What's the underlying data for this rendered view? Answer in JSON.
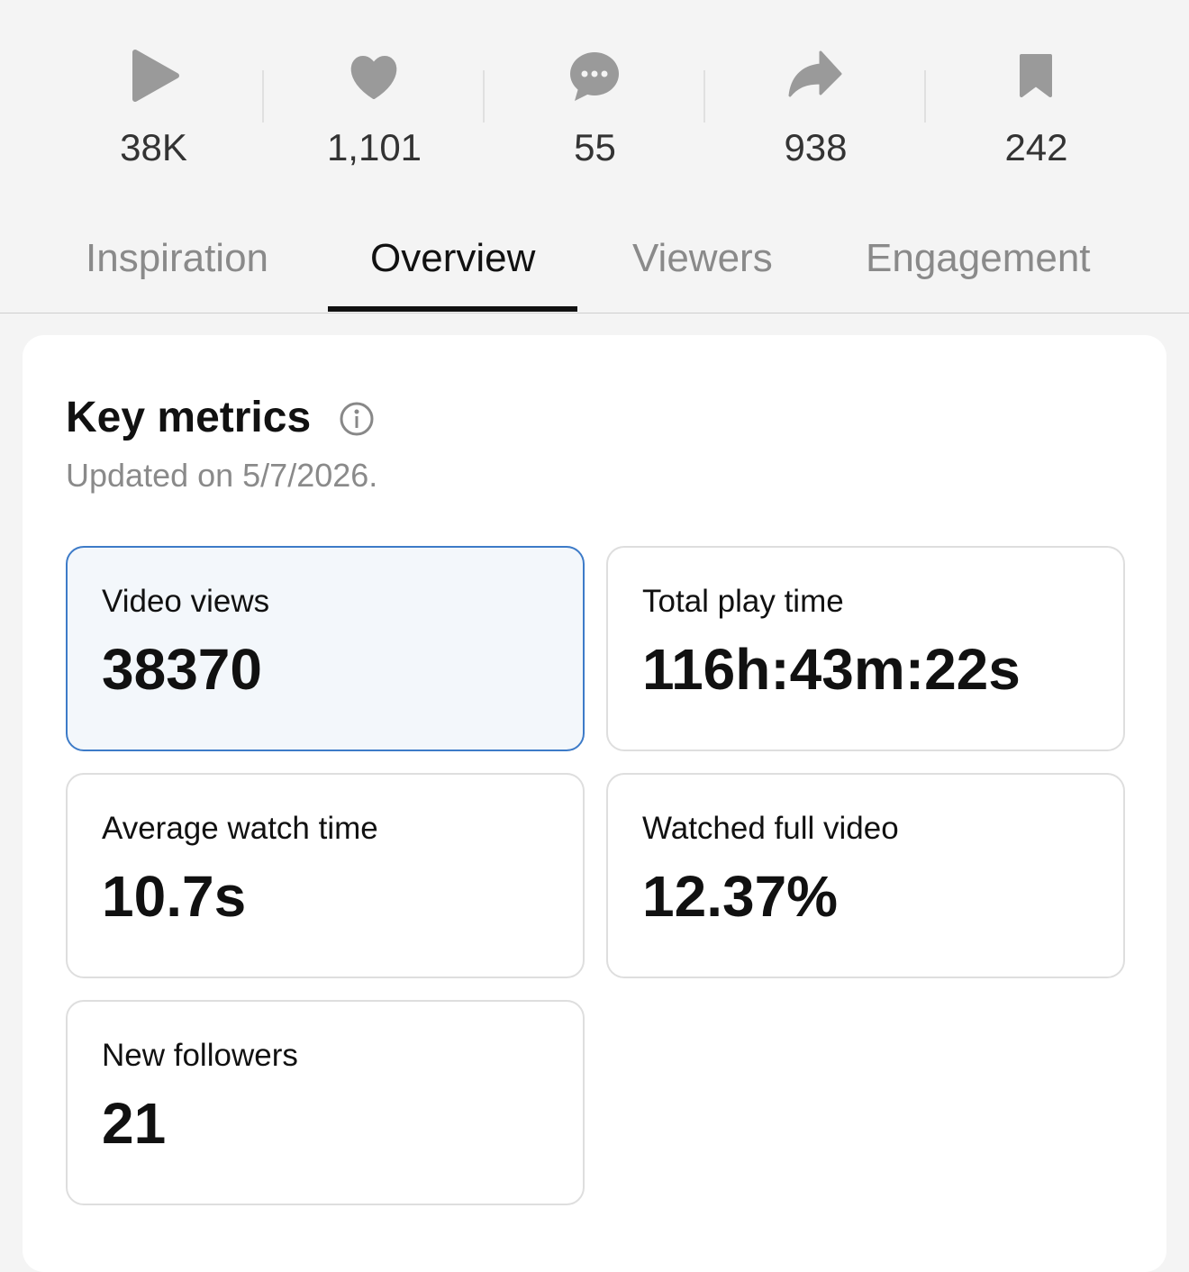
{
  "stats": [
    "38K",
    "1,101",
    "55",
    "938",
    "242"
  ],
  "tabs": {
    "items": [
      "Inspiration",
      "Overview",
      "Viewers",
      "Engagement"
    ],
    "active": 1
  },
  "key_metrics": {
    "title": "Key metrics",
    "updated": "Updated on 5/7/2026.",
    "selected": 0,
    "cards": [
      {
        "label": "Video views",
        "value": "38370"
      },
      {
        "label": "Total play time",
        "value": "116h:43m:22s"
      },
      {
        "label": "Average watch time",
        "value": "10.7s"
      },
      {
        "label": "Watched full video",
        "value": "12.37%"
      },
      {
        "label": "New followers",
        "value": "21"
      }
    ]
  }
}
